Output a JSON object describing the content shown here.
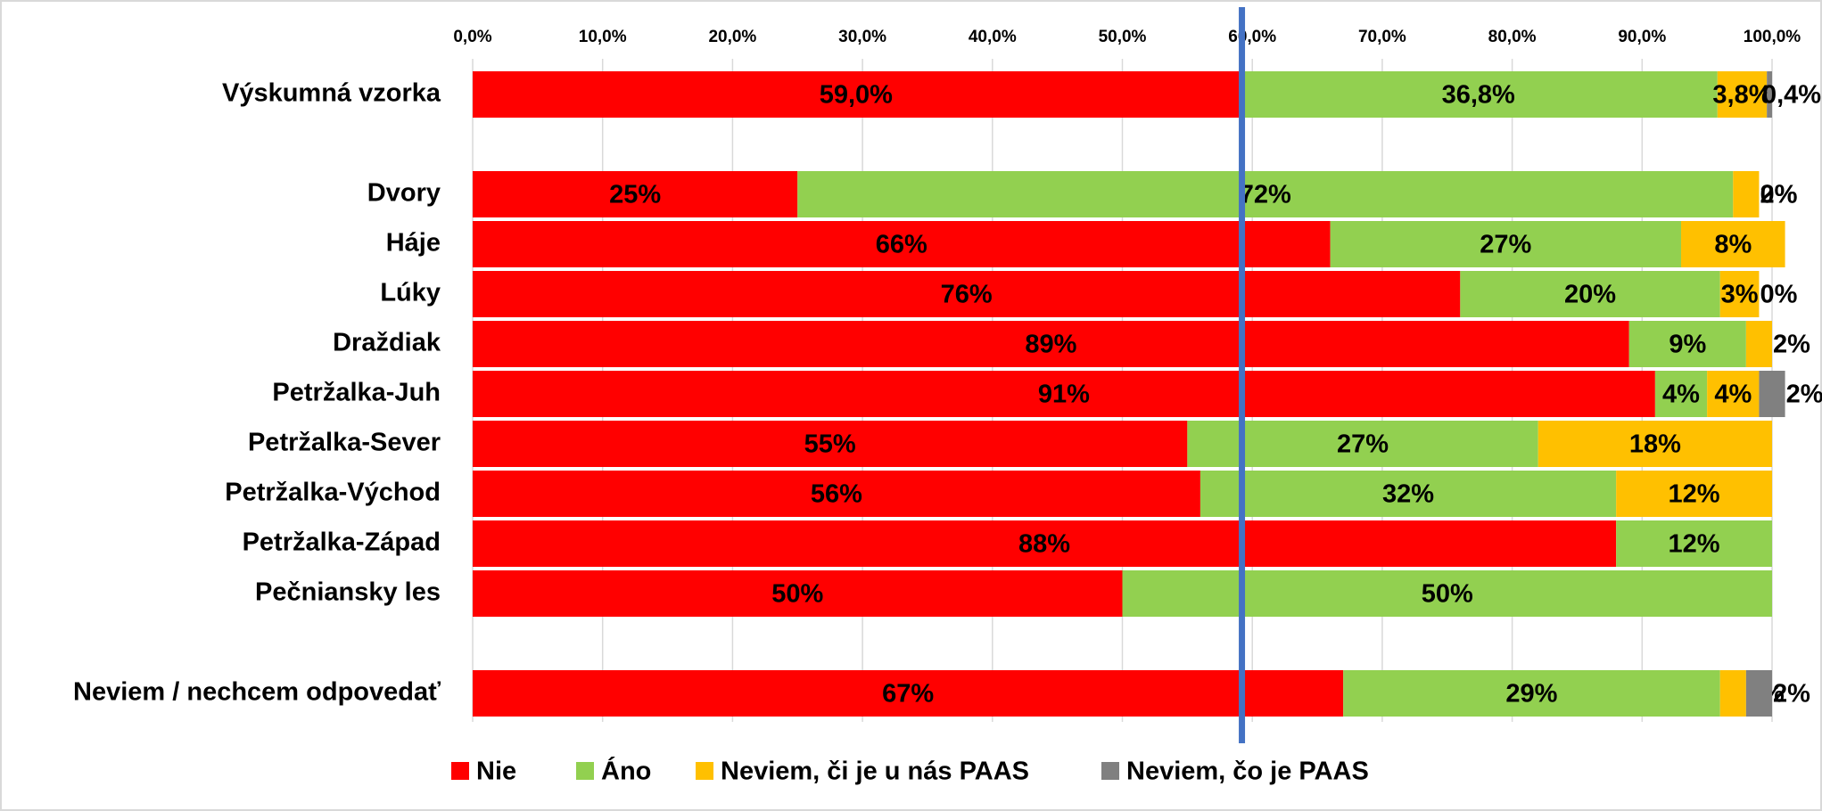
{
  "chart_data": {
    "type": "stacked_barh",
    "categories": [
      "Výskumná vzorka",
      null,
      "Dvory",
      "Háje",
      "Lúky",
      "Draždiak",
      "Petržalka-Juh",
      "Petržalka-Sever",
      "Petržalka-Východ",
      "Petržalka-Západ",
      "Pečniansky les",
      null,
      "Neviem / nechcem odpovedať"
    ],
    "series": [
      {
        "name": "Nie",
        "color": "#ff0000",
        "values": [
          59.0,
          null,
          25,
          66,
          76,
          89,
          91,
          55,
          56,
          88,
          50,
          null,
          67
        ],
        "value_labels": [
          "59,0%",
          null,
          "25%",
          "66%",
          "76%",
          "89%",
          "91%",
          "55%",
          "56%",
          "88%",
          "50%",
          null,
          "67%"
        ]
      },
      {
        "name": "Áno",
        "color": "#92d050",
        "values": [
          36.8,
          null,
          72,
          27,
          20,
          9,
          4,
          27,
          32,
          12,
          50,
          null,
          29
        ],
        "value_labels": [
          "36,8%",
          null,
          "72%",
          "27%",
          "20%",
          "9%",
          "4%",
          "27%",
          "32%",
          "12%",
          "50%",
          null,
          "29%"
        ]
      },
      {
        "name": "Neviem, či je u nás PAAS",
        "color": "#ffc000",
        "values": [
          3.8,
          null,
          2,
          8,
          3,
          2,
          4,
          18,
          12,
          null,
          null,
          null,
          2
        ],
        "value_labels": [
          "3,8%",
          null,
          "2%",
          "8%",
          "3%",
          "2%",
          "4%",
          "18%",
          "12%",
          null,
          null,
          null,
          "2%"
        ]
      },
      {
        "name": "Neviem, čo je PAAS",
        "color": "#808080",
        "values": [
          0.4,
          null,
          0,
          null,
          0,
          null,
          2,
          null,
          null,
          null,
          null,
          null,
          2
        ],
        "value_labels": [
          "0,4%",
          null,
          "0%",
          null,
          "0%",
          null,
          "2%",
          null,
          null,
          null,
          null,
          null,
          "2%"
        ]
      }
    ],
    "xlim": [
      0,
      100
    ],
    "xticks": [
      {
        "value": 0,
        "label": "0,0%"
      },
      {
        "value": 10,
        "label": "10,0%"
      },
      {
        "value": 20,
        "label": "20,0%"
      },
      {
        "value": 30,
        "label": "30,0%"
      },
      {
        "value": 40,
        "label": "40,0%"
      },
      {
        "value": 50,
        "label": "50,0%"
      },
      {
        "value": 60,
        "label": "60,0%"
      },
      {
        "value": 70,
        "label": "70,0%"
      },
      {
        "value": 80,
        "label": "80,0%"
      },
      {
        "value": 90,
        "label": "90,0%"
      },
      {
        "value": 100,
        "label": "100,0%"
      }
    ],
    "reference_line": {
      "value": 59.2,
      "color": "#4472c4"
    },
    "grid": true,
    "legend": "bottom"
  }
}
